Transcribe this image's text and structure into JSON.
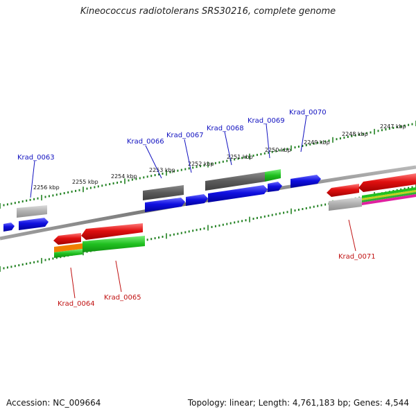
{
  "title": "Kineococcus radiotolerans SRS30216, complete genome",
  "footer": {
    "accession": "Accession: NC_009664",
    "summary": "Topology: linear; Length: 4,761,183 bp; Genes: 4,544"
  },
  "scale_labels": [
    "2256 kbp",
    "2255 kbp",
    "2254 kbp",
    "2253 kbp",
    "2252 kbp",
    "2251 kbp",
    "2250 kbp",
    "2249 kbp",
    "2248 kbp",
    "2247 kbp"
  ],
  "gene_labels_top": [
    "Krad_0063",
    "Krad_0066",
    "Krad_0067",
    "Krad_0068",
    "Krad_0069",
    "Krad_0070"
  ],
  "gene_labels_bottom": [
    "Krad_0064",
    "Krad_0065",
    "Krad_0071"
  ],
  "colors": {
    "forward_cds": "#1010e0",
    "reverse_cds": "#e01010",
    "gene_grey": "#606060",
    "gene_light_grey": "#a8a8a8",
    "green": "#20c020",
    "orange": "#f08000",
    "magenta": "#e020a0",
    "ruler_tick": "#208020",
    "top_label": "#1010c0",
    "bottom_label": "#c01010",
    "backbone": "#808080"
  }
}
